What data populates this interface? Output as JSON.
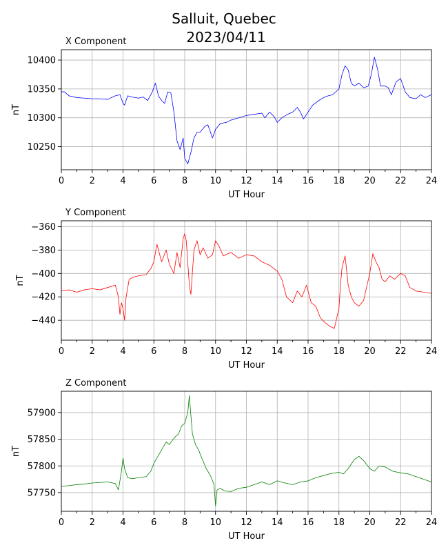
{
  "title_line1": "Salluit, Quebec",
  "title_line2": "2023/04/11",
  "chart_data": [
    {
      "type": "line",
      "title": "X Component",
      "xlabel": "UT Hour",
      "ylabel": "nT",
      "color": "#0000ff",
      "xlim": [
        0,
        24
      ],
      "ylim": [
        10210,
        10418
      ],
      "xticks": [
        0,
        2,
        4,
        6,
        8,
        10,
        12,
        14,
        16,
        18,
        20,
        22,
        24
      ],
      "yticks": [
        10250,
        10300,
        10350,
        10400
      ],
      "ytick_labels": [
        "10250",
        "10300",
        "10350",
        "10400"
      ],
      "grid": true,
      "series": [
        {
          "x": [
            0,
            0.2,
            0.5,
            1,
            1.5,
            2,
            2.5,
            3,
            3.5,
            3.8,
            4,
            4.1,
            4.3,
            4.6,
            5,
            5.3,
            5.6,
            5.9,
            6.1,
            6.3,
            6.5,
            6.7,
            6.9,
            7.1,
            7.3,
            7.5,
            7.7,
            7.9,
            8.0,
            8.2,
            8.4,
            8.6,
            8.8,
            9.0,
            9.3,
            9.5,
            9.8,
            10.0,
            10.3,
            10.7,
            11,
            11.5,
            12,
            12.5,
            13,
            13.2,
            13.5,
            13.8,
            14,
            14.3,
            14.6,
            15,
            15.3,
            15.5,
            15.7,
            16,
            16.3,
            16.7,
            17,
            17.3,
            17.6,
            18,
            18.2,
            18.4,
            18.6,
            18.8,
            19,
            19.3,
            19.6,
            19.9,
            20.1,
            20.3,
            20.5,
            20.7,
            21,
            21.2,
            21.4,
            21.7,
            22,
            22.3,
            22.6,
            23,
            23.3,
            23.6,
            24
          ],
          "y": [
            10345,
            10345,
            10338,
            10335,
            10334,
            10333,
            10333,
            10332,
            10338,
            10340,
            10325,
            10322,
            10338,
            10336,
            10334,
            10336,
            10330,
            10345,
            10360,
            10338,
            10330,
            10325,
            10345,
            10343,
            10310,
            10260,
            10245,
            10265,
            10230,
            10220,
            10240,
            10265,
            10275,
            10275,
            10285,
            10288,
            10265,
            10280,
            10290,
            10292,
            10296,
            10300,
            10304,
            10306,
            10308,
            10300,
            10310,
            10302,
            10292,
            10300,
            10305,
            10310,
            10318,
            10310,
            10298,
            10310,
            10322,
            10330,
            10335,
            10338,
            10340,
            10350,
            10375,
            10390,
            10383,
            10360,
            10355,
            10360,
            10352,
            10355,
            10375,
            10405,
            10385,
            10355,
            10355,
            10352,
            10340,
            10362,
            10368,
            10345,
            10335,
            10333,
            10340,
            10335,
            10340
          ]
        }
      ]
    },
    {
      "type": "line",
      "title": "Y Component",
      "xlabel": "UT Hour",
      "ylabel": "nT",
      "color": "#ff0000",
      "xlim": [
        0,
        24
      ],
      "ylim": [
        -457,
        -355
      ],
      "xticks": [
        0,
        2,
        4,
        6,
        8,
        10,
        12,
        14,
        16,
        18,
        20,
        22,
        24
      ],
      "yticks": [
        -440,
        -420,
        -400,
        -380,
        -360
      ],
      "ytick_labels": [
        "−440",
        "−420",
        "−400",
        "−380",
        "−360"
      ],
      "grid": true,
      "series": [
        {
          "x": [
            0,
            0.5,
            1,
            1.5,
            2,
            2.5,
            3,
            3.5,
            3.7,
            3.8,
            3.9,
            4.0,
            4.1,
            4.2,
            4.4,
            4.7,
            5,
            5.5,
            5.8,
            6.0,
            6.2,
            6.5,
            6.8,
            7.0,
            7.3,
            7.5,
            7.7,
            7.9,
            8.0,
            8.1,
            8.3,
            8.4,
            8.6,
            8.8,
            9.0,
            9.2,
            9.5,
            9.8,
            10.0,
            10.2,
            10.5,
            11,
            11.5,
            12,
            12.5,
            13,
            13.5,
            14,
            14.3,
            14.6,
            15,
            15.3,
            15.6,
            15.9,
            16.2,
            16.5,
            16.8,
            17.1,
            17.4,
            17.7,
            18.0,
            18.1,
            18.2,
            18.4,
            18.6,
            18.8,
            19.0,
            19.3,
            19.6,
            20.0,
            20.2,
            20.4,
            20.6,
            20.8,
            21.0,
            21.3,
            21.6,
            22.0,
            22.3,
            22.6,
            23,
            23.5,
            24
          ],
          "y": [
            -415,
            -414,
            -416,
            -414,
            -413,
            -414,
            -412,
            -410,
            -420,
            -435,
            -425,
            -430,
            -440,
            -420,
            -405,
            -403,
            -402,
            -401,
            -396,
            -390,
            -375,
            -390,
            -380,
            -392,
            -400,
            -382,
            -395,
            -370,
            -366,
            -372,
            -410,
            -418,
            -380,
            -372,
            -384,
            -378,
            -387,
            -384,
            -372,
            -376,
            -385,
            -382,
            -387,
            -384,
            -385,
            -390,
            -393,
            -398,
            -405,
            -420,
            -425,
            -415,
            -420,
            -410,
            -425,
            -428,
            -438,
            -442,
            -445,
            -447,
            -430,
            -410,
            -395,
            -385,
            -410,
            -420,
            -425,
            -428,
            -423,
            -400,
            -383,
            -390,
            -395,
            -405,
            -407,
            -402,
            -405,
            -400,
            -402,
            -412,
            -415,
            -416,
            -417
          ]
        }
      ]
    },
    {
      "type": "line",
      "title": "Z Component",
      "xlabel": "UT Hour",
      "ylabel": "nT",
      "color": "#008000",
      "xlim": [
        0,
        24
      ],
      "ylim": [
        57715,
        57940
      ],
      "xticks": [
        0,
        2,
        4,
        6,
        8,
        10,
        12,
        14,
        16,
        18,
        20,
        22,
        24
      ],
      "yticks": [
        57750,
        57800,
        57850,
        57900
      ],
      "ytick_labels": [
        "57750",
        "57800",
        "57850",
        "57900"
      ],
      "grid": true,
      "series": [
        {
          "x": [
            0,
            0.5,
            1,
            1.5,
            2,
            2.5,
            3,
            3.5,
            3.7,
            3.9,
            4.0,
            4.1,
            4.3,
            4.6,
            5,
            5.5,
            5.8,
            6.0,
            6.2,
            6.4,
            6.6,
            6.8,
            7.0,
            7.2,
            7.4,
            7.6,
            7.8,
            8.0,
            8.2,
            8.3,
            8.4,
            8.5,
            8.7,
            8.9,
            9.1,
            9.4,
            9.7,
            9.9,
            10.0,
            10.1,
            10.3,
            10.6,
            11,
            11.5,
            12,
            12.5,
            13,
            13.5,
            14,
            14.5,
            15,
            15.5,
            16,
            16.5,
            17,
            17.5,
            18,
            18.3,
            18.6,
            19,
            19.3,
            19.6,
            20,
            20.3,
            20.6,
            21,
            21.5,
            22,
            22.5,
            23,
            23.5,
            24
          ],
          "y": [
            57762,
            57763,
            57765,
            57766,
            57768,
            57769,
            57770,
            57767,
            57755,
            57790,
            57815,
            57795,
            57778,
            57776,
            57778,
            57780,
            57790,
            57805,
            57815,
            57825,
            57835,
            57845,
            57840,
            57848,
            57855,
            57860,
            57875,
            57880,
            57900,
            57932,
            57895,
            57860,
            57840,
            57830,
            57815,
            57795,
            57780,
            57765,
            57725,
            57755,
            57758,
            57753,
            57752,
            57758,
            57760,
            57765,
            57770,
            57765,
            57772,
            57768,
            57765,
            57770,
            57772,
            57778,
            57782,
            57786,
            57788,
            57785,
            57795,
            57812,
            57818,
            57810,
            57795,
            57790,
            57800,
            57798,
            57790,
            57787,
            57785,
            57780,
            57775,
            57770
          ]
        }
      ]
    }
  ]
}
